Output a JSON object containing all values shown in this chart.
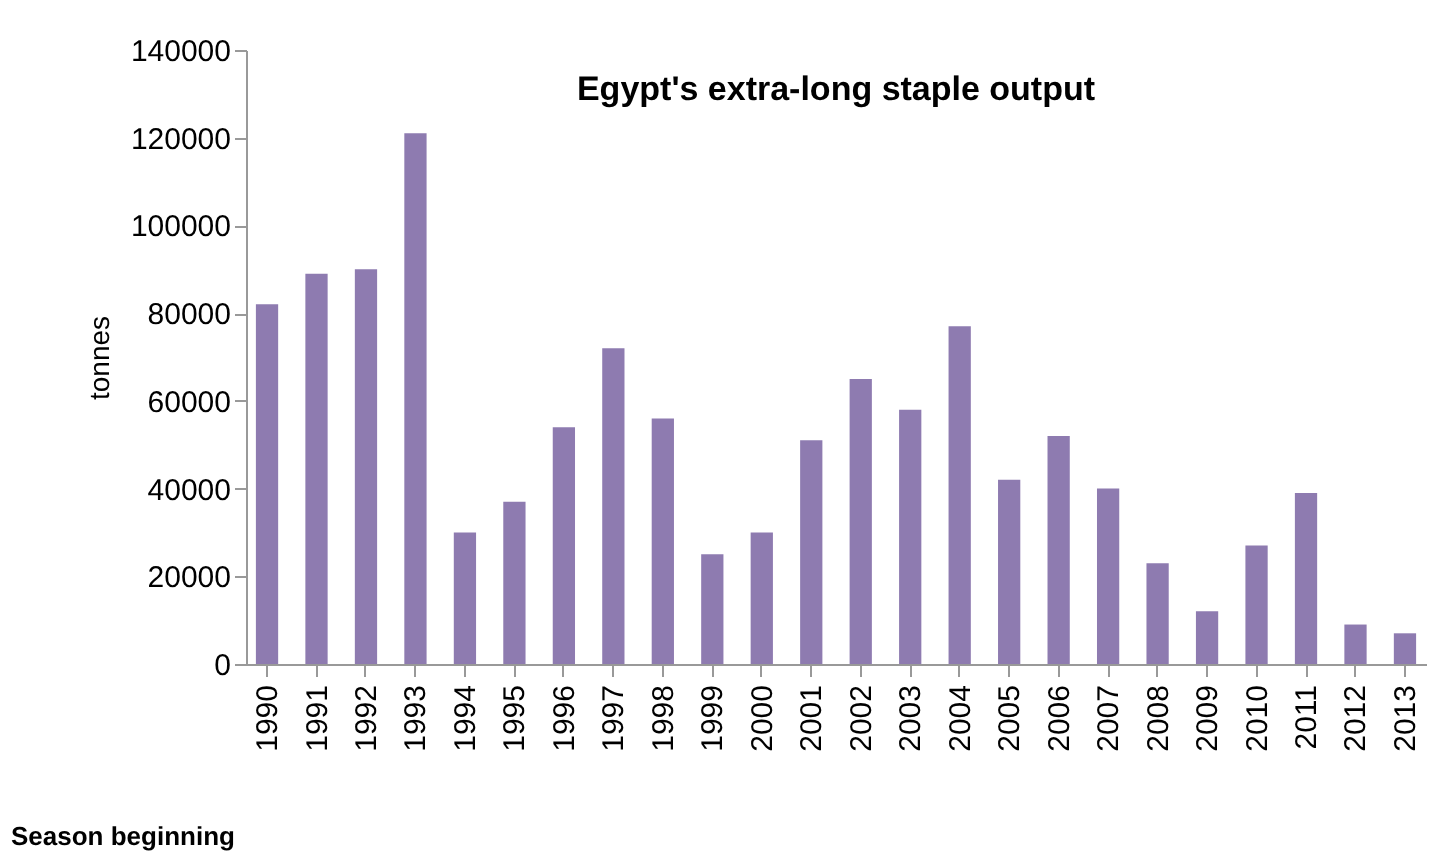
{
  "chart_data": {
    "type": "bar",
    "title": "Egypt's extra-long staple output",
    "xlabel": "Season beginning",
    "ylabel": "tonnes",
    "categories": [
      "1990",
      "1991",
      "1992",
      "1993",
      "1994",
      "1995",
      "1996",
      "1997",
      "1998",
      "1999",
      "2000",
      "2001",
      "2002",
      "2003",
      "2004",
      "2005",
      "2006",
      "2007",
      "2008",
      "2009",
      "2010",
      "2011",
      "2012",
      "2013"
    ],
    "values": [
      82000,
      89000,
      90000,
      121000,
      30000,
      37000,
      54000,
      72000,
      56000,
      25000,
      30000,
      51000,
      65000,
      58000,
      77000,
      42000,
      52000,
      40000,
      23000,
      12000,
      27000,
      39000,
      9000,
      7000
    ],
    "color": "#8e7bb0",
    "ylim": [
      0,
      140000
    ],
    "yticks": [
      0,
      20000,
      40000,
      60000,
      80000,
      100000,
      120000,
      140000
    ],
    "grid": false
  }
}
